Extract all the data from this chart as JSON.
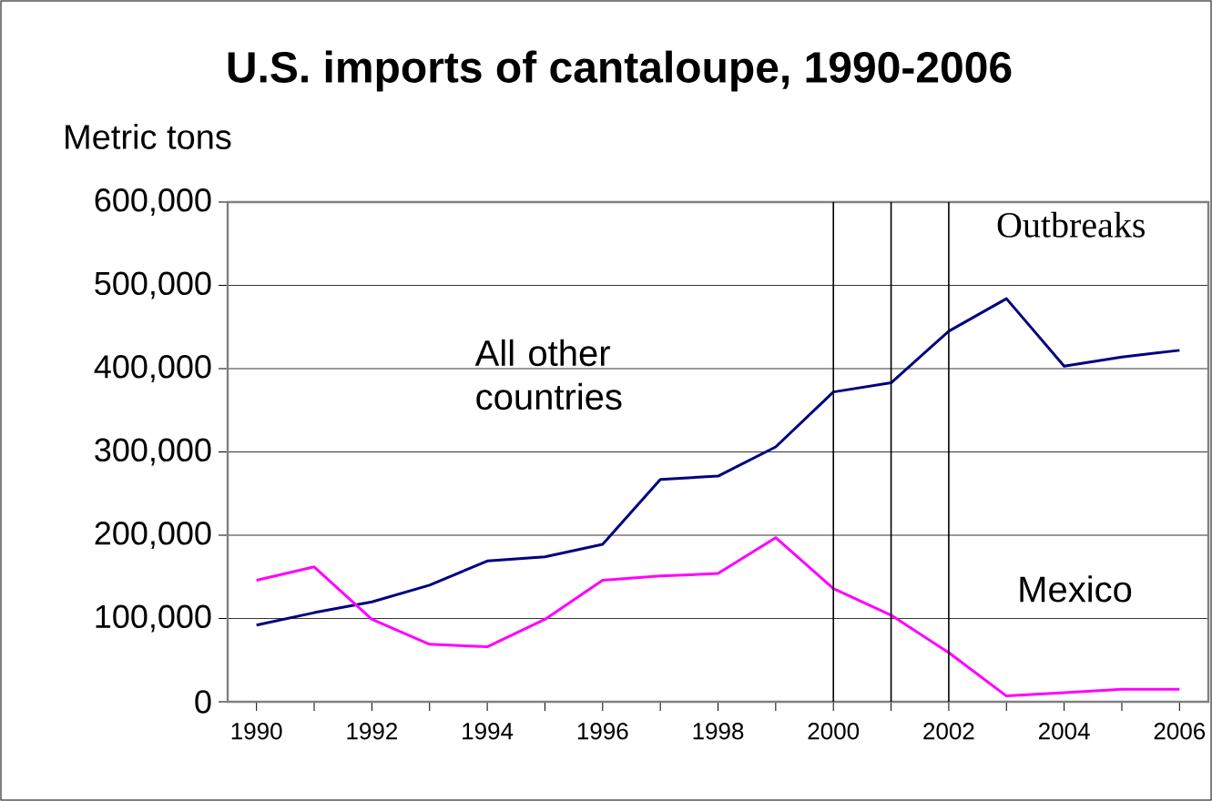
{
  "chart_data": {
    "type": "line",
    "title": "U.S. imports of cantaloupe, 1990-2006",
    "ylabel": "Metric tons",
    "x": [
      1990,
      1991,
      1992,
      1993,
      1994,
      1995,
      1996,
      1997,
      1998,
      1999,
      2000,
      2001,
      2002,
      2003,
      2004,
      2005,
      2006
    ],
    "series": [
      {
        "name": "All other countries",
        "color": "#000080",
        "values": [
          92000,
          107000,
          120000,
          140000,
          169000,
          174000,
          189000,
          267000,
          271000,
          306000,
          372000,
          383000,
          445000,
          484000,
          403000,
          414000,
          422000
        ]
      },
      {
        "name": "Mexico",
        "color": "#ff00ff",
        "values": [
          146000,
          162000,
          99000,
          69000,
          66000,
          99000,
          146000,
          151000,
          154000,
          197000,
          136000,
          104000,
          59000,
          7000,
          11000,
          15000,
          15000
        ]
      }
    ],
    "xlim": [
      1989.5,
      2006.5
    ],
    "xticks": [
      1990,
      {
        "value": 1991,
        "label": null
      },
      1992,
      {
        "value": 1993,
        "label": null
      },
      1994,
      {
        "value": 1995,
        "label": null
      },
      1996,
      {
        "value": 1997,
        "label": null
      },
      1998,
      {
        "value": 1999,
        "label": null
      },
      2000,
      {
        "value": 2001,
        "label": null
      },
      2002,
      {
        "value": 2003,
        "label": null
      },
      2004,
      {
        "value": 2005,
        "label": null
      },
      2006
    ],
    "ylim": [
      0,
      600000
    ],
    "yticks": [
      {
        "value": 0,
        "label": "0"
      },
      {
        "value": 100000,
        "label": "100,000"
      },
      {
        "value": 200000,
        "label": "200,000"
      },
      {
        "value": 300000,
        "label": "300,000"
      },
      {
        "value": 400000,
        "label": "400,000"
      },
      {
        "value": 500000,
        "label": "500,000"
      },
      {
        "value": 600000,
        "label": "600,000"
      }
    ],
    "ref_lines": [
      {
        "axis": "x",
        "value": 2000,
        "color": "#000000"
      },
      {
        "axis": "x",
        "value": 2001,
        "color": "#000000"
      },
      {
        "axis": "x",
        "value": 2002,
        "color": "#000000"
      }
    ],
    "annotations": [
      "Outbreaks"
    ],
    "grid": "y",
    "marker": "none",
    "line_style": "solid"
  }
}
